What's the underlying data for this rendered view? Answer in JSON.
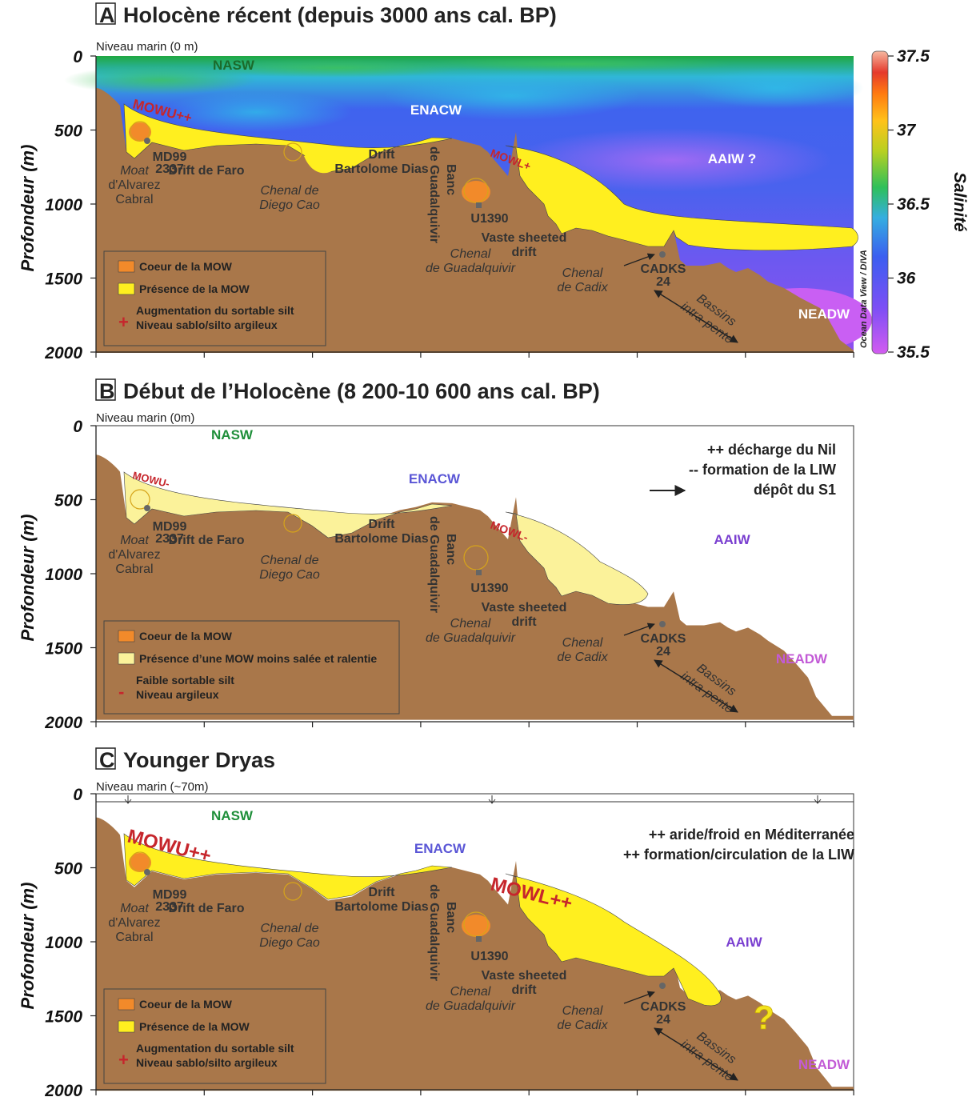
{
  "colors": {
    "sediment": "#a9774a",
    "mow_core": "#f28a2a",
    "mow_presence": "#ffef1f",
    "mow_weak": "#fbf29a",
    "nasw": "#1f8f3a",
    "enacw": "#5a56d6",
    "aaiw": "#7a3fd0",
    "neadw": "#c25ad6",
    "mow_label": "#c6262c"
  },
  "colorbar": {
    "ticks": [
      "37.5",
      "37",
      "36.5",
      "36",
      "35.5"
    ],
    "title": "Salinité",
    "source": "Ocean Data View / DIVA"
  },
  "panels": [
    {
      "letter": "A",
      "title": "Holocène récent (depuis 3000 ans cal. BP)",
      "sea_level": "Niveau marin (0 m)",
      "y_axis_label": "Profondeur (m)",
      "y_ticks": [
        "0",
        "500",
        "1000",
        "1500",
        "2000"
      ],
      "water_masses": [
        "NASW",
        "ENACW",
        "AAIW ?",
        "NEADW"
      ],
      "mow_upper": "MOWU++",
      "mow_lower": "MOWL+",
      "legend": [
        "Coeur de la MOW",
        "Présence de la MOW",
        "Augmentation du sortable silt",
        "Niveau sablo/silto argileux"
      ],
      "legend_symbol": "+",
      "notes": []
    },
    {
      "letter": "B",
      "title": "Début de l’Holocène (8 200-10 600 ans cal. BP)",
      "sea_level": "Niveau marin (0m)",
      "y_axis_label": "Profondeur (m)",
      "y_ticks": [
        "0",
        "500",
        "1000",
        "1500",
        "2000"
      ],
      "water_masses": [
        "NASW",
        "ENACW",
        "AAIW",
        "NEADW"
      ],
      "mow_upper": "MOWU-",
      "mow_lower": "MOWL-",
      "legend": [
        "Coeur de la MOW",
        "Présence d’une MOW moins salée et ralentie",
        "Faible sortable silt",
        "Niveau argileux"
      ],
      "legend_symbol": "-",
      "notes": [
        "++ décharge du Nil",
        "-- formation de la LIW",
        "dépôt du S1"
      ]
    },
    {
      "letter": "C",
      "title": "Younger Dryas",
      "sea_level": "Niveau marin (~70m)",
      "y_axis_label": "Profondeur (m)",
      "y_ticks": [
        "0",
        "500",
        "1000",
        "1500",
        "2000"
      ],
      "water_masses": [
        "NASW",
        "ENACW",
        "AAIW",
        "NEADW"
      ],
      "mow_upper": "MOWU++",
      "mow_lower": "MOWL++",
      "legend": [
        "Coeur de la MOW",
        "Présence de la MOW",
        "Augmentation du sortable silt",
        "Niveau sablo/silto argileux"
      ],
      "legend_symbol": "+",
      "notes": [
        "++ aride/froid en Méditerranée",
        "++ formation/circulation de la LIW"
      ],
      "question_mark": "?"
    }
  ],
  "place_labels": {
    "moat": [
      "Moat",
      "d'Alvarez",
      "Cabral"
    ],
    "md99": [
      "MD99",
      "2337"
    ],
    "drift_faro": "Drift de  Faro",
    "chenal_diego": [
      "Chenal de",
      "Diego Cao"
    ],
    "drift_bartolome": [
      "Drift",
      "Bartolome Dias"
    ],
    "banc": [
      "Banc",
      "de Guadalquivir"
    ],
    "u1390": "U1390",
    "vaste": [
      "Vaste sheeted",
      "drift"
    ],
    "chenal_guad": [
      "Chenal",
      "de Guadalquivir"
    ],
    "chenal_cadix": [
      "Chenal",
      "de Cadix"
    ],
    "cadks": [
      "CADKS",
      "24"
    ],
    "bassins": [
      "Bassins",
      "intra-pente"
    ]
  }
}
